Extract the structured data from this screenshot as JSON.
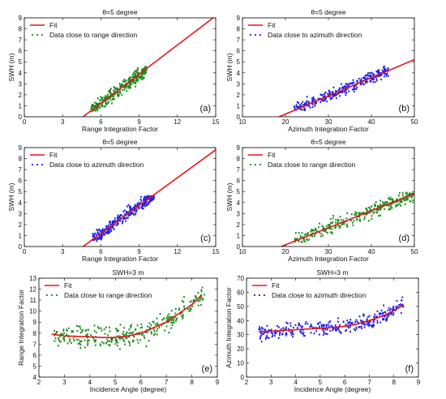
{
  "colors": {
    "fit": "#e8141b",
    "green": "#1a8c1a",
    "blue": "#1f1fe6"
  },
  "chart_data": [
    {
      "type": "scatter",
      "panel_label": "(a)",
      "title": "θ=5 degree",
      "xlabel": "Range Integration Factor",
      "ylabel": "SWH (m)",
      "xlim": [
        0,
        15
      ],
      "ylim": [
        0,
        9
      ],
      "xticks": [
        "0",
        "3",
        "6",
        "9",
        "12",
        "15"
      ],
      "yticks": [
        "0",
        "1",
        "2",
        "3",
        "4",
        "5",
        "6",
        "7",
        "8",
        "9"
      ],
      "legend": {
        "position": "top-left",
        "entries": [
          "Fit",
          "Data close to range direction"
        ]
      },
      "fit": {
        "x": [
          4.6,
          14.8
        ],
        "y": [
          0,
          9
        ]
      },
      "scatter": {
        "series": "Data close to range direction",
        "color": "green",
        "x_range": [
          5.2,
          9.6
        ],
        "y_range": [
          0.5,
          4.6
        ],
        "slope": 0.87,
        "x_at_zero": 4.6,
        "spread": 0.55
      }
    },
    {
      "type": "scatter",
      "panel_label": "(b)",
      "title": "θ=5 degree",
      "xlabel": "Azimuth Integration Factor",
      "ylabel": "SWH (m)",
      "xlim": [
        10,
        50
      ],
      "ylim": [
        0,
        9
      ],
      "xticks": [
        "10",
        "20",
        "30",
        "40",
        "50"
      ],
      "yticks": [
        "0",
        "1",
        "2",
        "3",
        "4",
        "5",
        "6",
        "7",
        "8",
        "9"
      ],
      "legend": {
        "position": "top-left",
        "entries": [
          "Fit",
          "Data close to azimuth direction"
        ]
      },
      "fit": {
        "x": [
          18.5,
          50
        ],
        "y": [
          0,
          5.2
        ]
      },
      "scatter": {
        "series": "Data close to azimuth direction",
        "color": "blue",
        "x_range": [
          22,
          44
        ],
        "y_range": [
          0.6,
          4.6
        ],
        "slope": 0.165,
        "x_at_zero": 18.5,
        "spread": 0.5
      }
    },
    {
      "type": "scatter",
      "panel_label": "(c)",
      "title": "θ=5 degree",
      "xlabel": "Range Integration Factor",
      "ylabel": "SWH (m)",
      "xlim": [
        0,
        15
      ],
      "ylim": [
        0,
        9
      ],
      "xticks": [
        "0",
        "3",
        "6",
        "9",
        "12",
        "15"
      ],
      "yticks": [
        "0",
        "1",
        "2",
        "3",
        "4",
        "5",
        "6",
        "7",
        "8",
        "9"
      ],
      "legend": {
        "position": "top-left",
        "entries": [
          "Fit",
          "Data close to azimuth direction"
        ]
      },
      "fit": {
        "x": [
          4.6,
          15
        ],
        "y": [
          0,
          8.8
        ]
      },
      "scatter": {
        "series": "Data close to azimuth direction",
        "color": "blue",
        "x_range": [
          5.3,
          10.2
        ],
        "y_range": [
          0.5,
          4.6
        ],
        "slope": 0.85,
        "x_at_zero": 4.6,
        "spread": 0.55
      }
    },
    {
      "type": "scatter",
      "panel_label": "(d)",
      "title": "θ=5 degree",
      "xlabel": "Azimuth Integration Factor",
      "ylabel": "SWH (m)",
      "xlim": [
        10,
        50
      ],
      "ylim": [
        0,
        9
      ],
      "xticks": [
        "10",
        "20",
        "30",
        "40",
        "50"
      ],
      "yticks": [
        "0",
        "1",
        "2",
        "3",
        "4",
        "5",
        "6",
        "7",
        "8",
        "9"
      ],
      "legend": {
        "position": "top-left",
        "entries": [
          "Fit",
          "Data close to range direction"
        ]
      },
      "fit": {
        "x": [
          19,
          50
        ],
        "y": [
          0,
          4.8
        ]
      },
      "scatter": {
        "series": "Data close to range direction",
        "color": "green",
        "x_range": [
          22,
          50
        ],
        "y_range": [
          0.4,
          4.9
        ],
        "slope": 0.155,
        "x_at_zero": 19,
        "spread": 0.6
      }
    },
    {
      "type": "scatter",
      "panel_label": "(e)",
      "title": "SWH=3 m",
      "xlabel": "Incidence Angle (degree)",
      "ylabel": "Range Integration Factor",
      "xlim": [
        2,
        9
      ],
      "ylim": [
        4,
        13
      ],
      "xticks": [
        "2",
        "3",
        "4",
        "5",
        "6",
        "7",
        "8",
        "9"
      ],
      "yticks": [
        "4",
        "5",
        "6",
        "7",
        "8",
        "9",
        "10",
        "11",
        "12",
        "13"
      ],
      "legend": {
        "position": "top-left",
        "entries": [
          "Fit",
          "Data close to range direction"
        ]
      },
      "fit": {
        "x": [
          2.5,
          3.0,
          3.5,
          4.0,
          4.5,
          5.0,
          5.5,
          6.0,
          6.5,
          7.0,
          7.5,
          8.0,
          8.4
        ],
        "y": [
          7.9,
          7.75,
          7.7,
          7.65,
          7.6,
          7.6,
          7.75,
          8.0,
          8.5,
          9.0,
          9.8,
          10.6,
          11.5
        ]
      },
      "scatter": {
        "series": "Data close to range direction",
        "color": "green",
        "x_range": [
          2.6,
          8.5
        ],
        "spread": 0.9
      }
    },
    {
      "type": "scatter",
      "panel_label": "(f)",
      "title": "SWH=3 m",
      "xlabel": "Incidence Angle (degree)",
      "ylabel": "Azimuth Integration Factor",
      "xlim": [
        2,
        9
      ],
      "ylim": [
        0,
        70
      ],
      "xticks": [
        "2",
        "3",
        "4",
        "5",
        "6",
        "7",
        "8",
        "9"
      ],
      "yticks": [
        "0",
        "10",
        "20",
        "30",
        "40",
        "50",
        "60",
        "70"
      ],
      "legend": {
        "position": "top-left",
        "entries": [
          "Fit",
          "Data close to azimuth direction"
        ]
      },
      "fit": {
        "x": [
          2.5,
          3.0,
          3.5,
          4.0,
          4.5,
          5.0,
          5.5,
          6.0,
          6.5,
          7.0,
          7.5,
          8.0,
          8.4
        ],
        "y": [
          32,
          32.5,
          33,
          33.5,
          34,
          34.5,
          35,
          36,
          37.5,
          40,
          43,
          47,
          51
        ]
      },
      "scatter": {
        "series": "Data close to azimuth direction",
        "color": "blue",
        "x_range": [
          2.5,
          8.4
        ],
        "spread": 5
      }
    }
  ]
}
